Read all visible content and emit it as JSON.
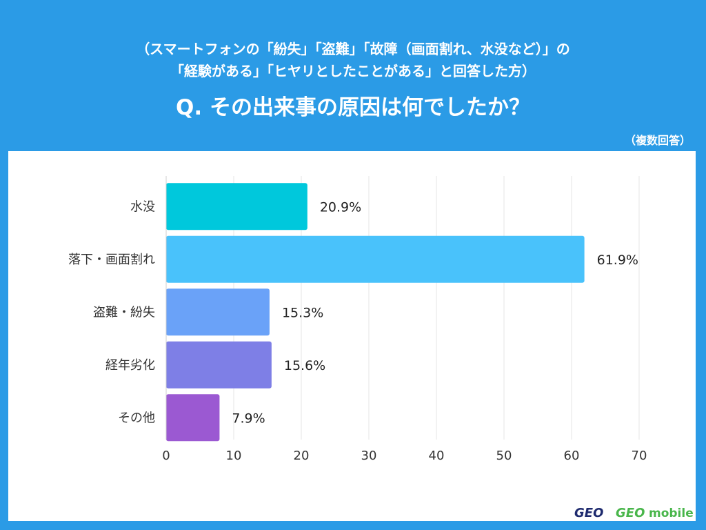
{
  "header": {
    "subtitle_line1": "（スマートフォンの「紛失」「盗難」「故障（画面割れ、水没など）」の",
    "subtitle_line2": "「経験がある」「ヒヤリとしたことがある」と回答した方）",
    "question": "Q. その出来事の原因は何でしたか？",
    "note": "（複数回答）"
  },
  "brand": {
    "logo1": "GEO",
    "logo2_prefix": "GEO",
    "logo2_suffix": "mobile"
  },
  "colors": {
    "background": "#2b9be6",
    "panel": "#ffffff"
  },
  "chart_data": {
    "type": "bar",
    "orientation": "horizontal",
    "categories": [
      "水没",
      "落下・画面割れ",
      "盗難・紛失",
      "経年劣化",
      "その他"
    ],
    "values": [
      20.9,
      61.9,
      15.3,
      15.6,
      7.9
    ],
    "value_labels": [
      "20.9%",
      "61.9%",
      "15.3%",
      "15.6%",
      "7.9%"
    ],
    "bar_colors": [
      "#00c8dc",
      "#49c2fb",
      "#6aa2f8",
      "#7e7fe6",
      "#9b59d2"
    ],
    "xlim": [
      0,
      70
    ],
    "xticks": [
      0,
      10,
      20,
      30,
      40,
      50,
      60,
      70
    ],
    "grid": true
  }
}
